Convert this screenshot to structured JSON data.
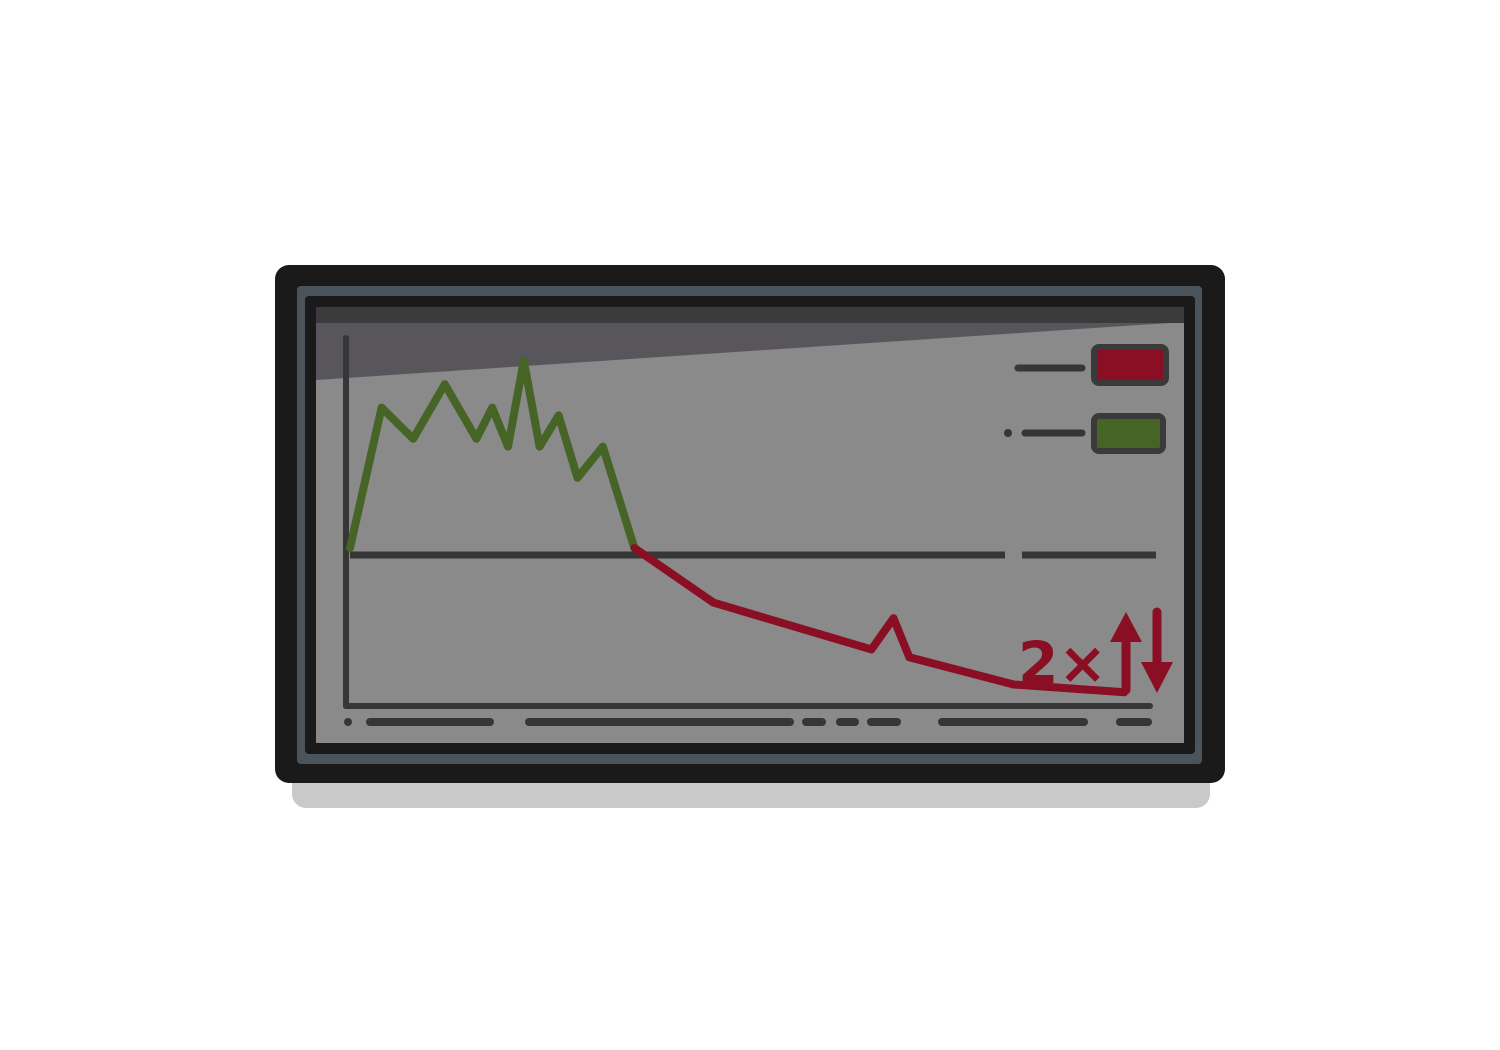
{
  "badge": {
    "text": "2×"
  },
  "colors": {
    "background": "#ffffff",
    "bezel": "#1b1a1b",
    "bezel_inner": "#4a545c",
    "screen": "#8a8a8a",
    "glare": "#58565a",
    "axis": "#363636",
    "gain": "#476427",
    "loss": "#8a0e24",
    "shadow": "#c9c9c9"
  },
  "icons": {
    "legend_loss": "red-swatch-icon",
    "legend_gain": "green-swatch-icon",
    "up_arrow": "arrow-up-icon",
    "down_arrow": "arrow-down-icon"
  },
  "chart_data": {
    "type": "line",
    "baseline_y": 0,
    "series": [
      {
        "color": "#476427",
        "points": [
          [
            0,
            0
          ],
          [
            1,
            18
          ],
          [
            2,
            14
          ],
          [
            3,
            21
          ],
          [
            4,
            14
          ],
          [
            4.5,
            18
          ],
          [
            5,
            13
          ],
          [
            5.5,
            24
          ],
          [
            6,
            13
          ],
          [
            6.6,
            17
          ],
          [
            7.2,
            9
          ],
          [
            8,
            13
          ],
          [
            9,
            0
          ]
        ]
      },
      {
        "color": "#8a0e24",
        "points": [
          [
            9,
            0
          ],
          [
            11.5,
            -7
          ],
          [
            16.5,
            -13
          ],
          [
            17.2,
            -9
          ],
          [
            17.7,
            -14
          ],
          [
            21,
            -17.5
          ],
          [
            24.5,
            -18.5
          ]
        ]
      }
    ]
  }
}
